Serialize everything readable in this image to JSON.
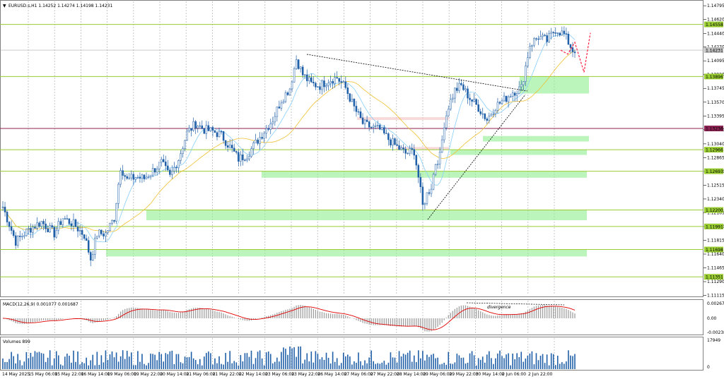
{
  "header": {
    "symbol_line": "EURUSD.s,H1   1.14252  1.14274  1.14198  1.14231"
  },
  "colors": {
    "bull": "#1f5fa8",
    "bear": "#1f5fa8",
    "ma_fast": "#87cefa",
    "ma_slow": "#f0c030",
    "level_line": "#9acd32",
    "current_line": "#8b2252",
    "zone_fill": "#90ee90",
    "macd_hist": "#a0a0a0",
    "macd_signal": "#e00000",
    "volume_bar": "#1f5fa8",
    "forecast": "#ff2040"
  },
  "chart_data": [
    {
      "type": "candlestick",
      "title": "EURUSD.s,H1",
      "ylim": [
        1.1112,
        1.1485
      ],
      "y_ticks": [
        "1.14795",
        "1.14620",
        "1.14440",
        "1.14270",
        "1.14095",
        "1.13920",
        "1.13745",
        "1.13570",
        "1.13395",
        "1.13220",
        "1.13040",
        "1.12865",
        "1.12690",
        "1.12515",
        "1.12340",
        "1.12165",
        "1.11990",
        "1.11815",
        "1.11640",
        "1.11465",
        "1.11290",
        "1.11115"
      ],
      "x_ticks": [
        "14 May 2025",
        "15 May 06:00",
        "15 May 22:00",
        "16 May 14:00",
        "19 May 06:00",
        "19 May 22:00",
        "20 May 14:00",
        "21 May 06:00",
        "21 May 22:00",
        "22 May 14:00",
        "23 May 06:00",
        "23 May 22:00",
        "26 May 14:00",
        "27 May 06:00",
        "27 May 22:00",
        "28 May 14:00",
        "29 May 06:00",
        "29 May 22:00",
        "30 May 14:00",
        "2 Jun 06:00",
        "2 Jun 22:00"
      ],
      "levels": [
        {
          "value": "1.14558",
          "price": 1.14558
        },
        {
          "value": "1.14231",
          "price": 1.14231
        },
        {
          "value": "1.13896",
          "price": 1.13896
        },
        {
          "value": "1.13236",
          "price": 1.13236
        },
        {
          "value": "1.12966",
          "price": 1.12966
        },
        {
          "value": "1.12693",
          "price": 1.12693
        },
        {
          "value": "1.12200",
          "price": 1.122
        },
        {
          "value": "1.11991",
          "price": 1.11991
        },
        {
          "value": "1.11698",
          "price": 1.11698
        },
        {
          "value": "1.11351",
          "price": 1.11351
        }
      ],
      "current_price": 1.14231,
      "anchors": [
        [
          0,
          1.1224
        ],
        [
          6,
          1.118
        ],
        [
          12,
          1.1195
        ],
        [
          18,
          1.1205
        ],
        [
          24,
          1.119
        ],
        [
          28,
          1.121
        ],
        [
          33,
          1.1202
        ],
        [
          38,
          1.1188
        ],
        [
          41,
          1.1158
        ],
        [
          44,
          1.119
        ],
        [
          48,
          1.119
        ],
        [
          52,
          1.121
        ],
        [
          55,
          1.1275
        ],
        [
          58,
          1.1258
        ],
        [
          62,
          1.1262
        ],
        [
          66,
          1.126
        ],
        [
          70,
          1.127
        ],
        [
          74,
          1.128
        ],
        [
          78,
          1.1262
        ],
        [
          82,
          1.1285
        ],
        [
          86,
          1.1318
        ],
        [
          90,
          1.133
        ],
        [
          94,
          1.1322
        ],
        [
          98,
          1.132
        ],
        [
          102,
          1.1315
        ],
        [
          106,
          1.13
        ],
        [
          110,
          1.1285
        ],
        [
          114,
          1.129
        ],
        [
          118,
          1.1305
        ],
        [
          122,
          1.132
        ],
        [
          126,
          1.1335
        ],
        [
          130,
          1.136
        ],
        [
          134,
          1.1375
        ],
        [
          137,
          1.1412
        ],
        [
          140,
          1.1392
        ],
        [
          144,
          1.138
        ],
        [
          148,
          1.1378
        ],
        [
          152,
          1.1385
        ],
        [
          156,
          1.1388
        ],
        [
          160,
          1.1375
        ],
        [
          164,
          1.135
        ],
        [
          168,
          1.133
        ],
        [
          172,
          1.1325
        ],
        [
          176,
          1.1322
        ],
        [
          180,
          1.131
        ],
        [
          184,
          1.13
        ],
        [
          188,
          1.1292
        ],
        [
          192,
          1.1295
        ],
        [
          194,
          1.1262
        ],
        [
          196,
          1.1225
        ],
        [
          198,
          1.124
        ],
        [
          200,
          1.125
        ],
        [
          202,
          1.128
        ],
        [
          204,
          1.1288
        ],
        [
          206,
          1.133
        ],
        [
          208,
          1.1352
        ],
        [
          211,
          1.1372
        ],
        [
          214,
          1.1378
        ],
        [
          218,
          1.1362
        ],
        [
          222,
          1.135
        ],
        [
          226,
          1.1335
        ],
        [
          230,
          1.1352
        ],
        [
          234,
          1.136
        ],
        [
          238,
          1.137
        ],
        [
          242,
          1.1375
        ],
        [
          246,
          1.143
        ],
        [
          250,
          1.144
        ],
        [
          254,
          1.1435
        ],
        [
          258,
          1.145
        ],
        [
          262,
          1.1443
        ],
        [
          266,
          1.1423
        ]
      ],
      "forecast": [
        1.14231,
        1.1418,
        1.1433,
        1.1395,
        1.1445
      ]
    },
    {
      "type": "histogram",
      "title": "MACD(12,26,9) 0.001077 0.001687",
      "y_ticks": [
        "0.002678",
        "0.00",
        "-0.002389"
      ],
      "annotations": [
        "divergence"
      ]
    },
    {
      "type": "bar",
      "title": "Volumes 899",
      "y_ticks": [
        "17949",
        "0"
      ]
    }
  ]
}
